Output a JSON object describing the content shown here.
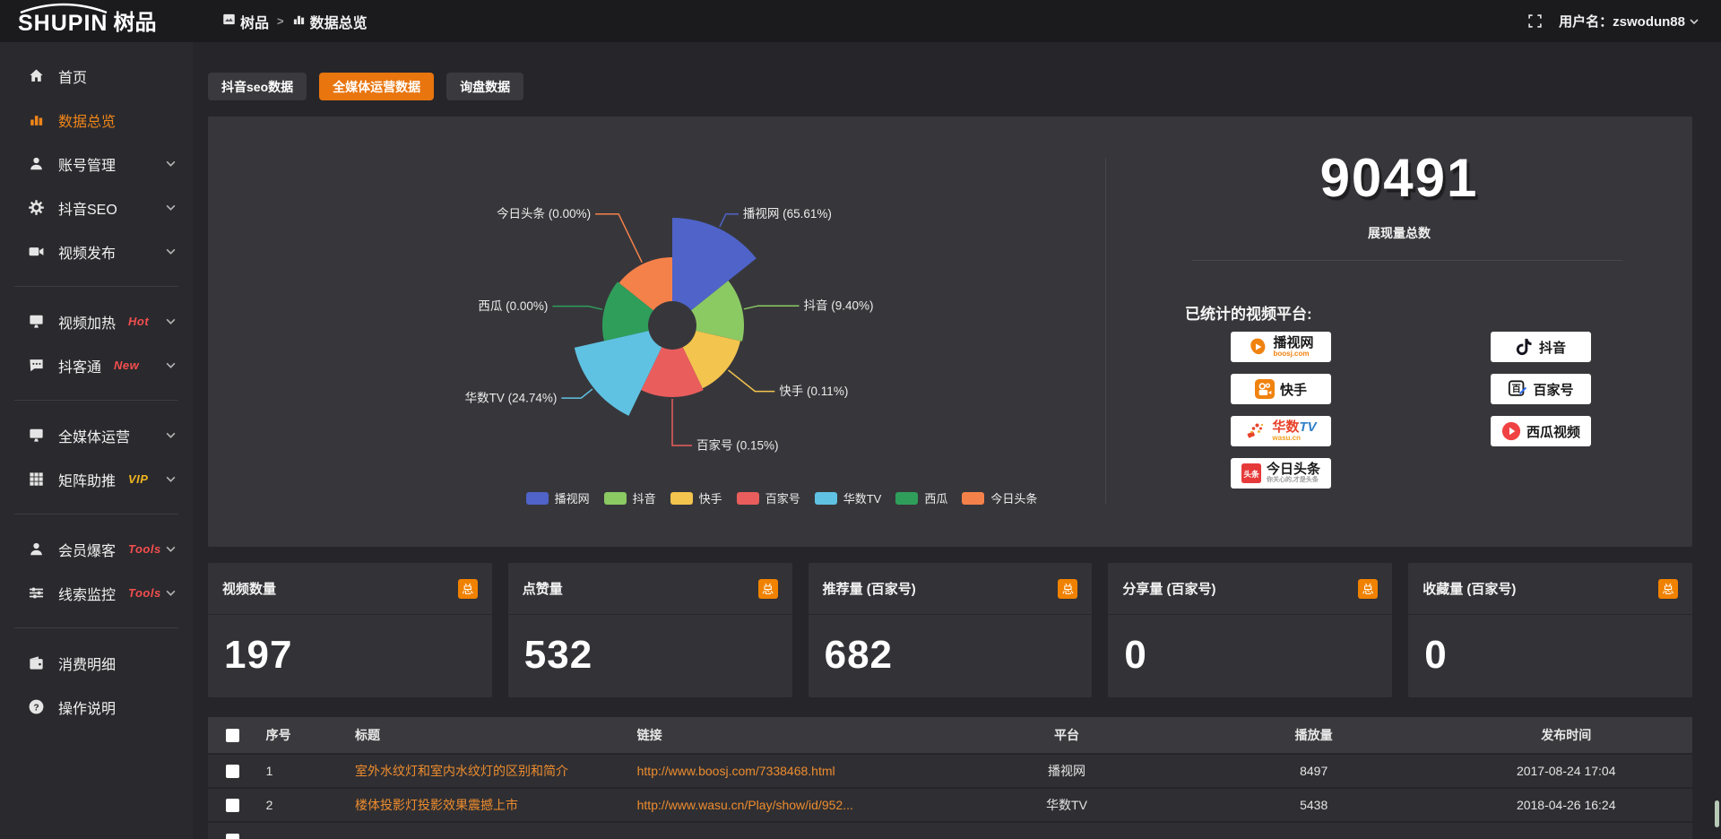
{
  "colors": {
    "accent": "#f08519",
    "tab_active": "#e8750e",
    "total_badge": "#f08200",
    "link": "#ee8c2e",
    "hot_badge": "#f34e4e",
    "vip_badge": "#f0b41f",
    "panel": "#37373b",
    "topbar": "#1b1b1e"
  },
  "topbar": {
    "logo_en": "SHUPIN",
    "logo_cn": "树品",
    "breadcrumb": [
      {
        "label": "树品",
        "icon": "picture-icon"
      },
      {
        "label": "数据总览",
        "icon": "bar-chart-icon"
      }
    ],
    "breadcrumb_separator": ">",
    "username_label": "用户名：zswodun88"
  },
  "sidebar": {
    "items": [
      {
        "label": "首页",
        "icon": "home"
      },
      {
        "label": "数据总览",
        "icon": "bar-chart",
        "active": true
      },
      {
        "label": "账号管理",
        "icon": "user",
        "chevron": true
      },
      {
        "label": "抖音SEO",
        "icon": "gear",
        "chevron": true
      },
      {
        "label": "视频发布",
        "icon": "camera",
        "chevron": true
      },
      {
        "divider": true
      },
      {
        "label": "视频加热",
        "icon": "monitor",
        "badge": "Hot",
        "badge_color": "#f34e4e",
        "chevron": true
      },
      {
        "label": "抖客通",
        "icon": "chat",
        "badge": "New",
        "badge_color": "#f34e4e",
        "chevron": true
      },
      {
        "divider": true
      },
      {
        "label": "全媒体运营",
        "icon": "monitor",
        "chevron": true
      },
      {
        "label": "矩阵助推",
        "icon": "grid",
        "badge": "VIP",
        "badge_color": "#f0b41f",
        "chevron": true
      },
      {
        "divider": true
      },
      {
        "label": "会员爆客",
        "icon": "user",
        "badge": "Tools",
        "badge_color": "#f34e4e",
        "chevron": true
      },
      {
        "label": "线索监控",
        "icon": "sliders",
        "badge": "Tools",
        "badge_color": "#f34e4e",
        "chevron": true
      },
      {
        "divider": true
      },
      {
        "label": "消费明细",
        "icon": "wallet"
      },
      {
        "label": "操作说明",
        "icon": "question"
      }
    ]
  },
  "tabs": [
    {
      "label": "抖音seo数据",
      "active": false
    },
    {
      "label": "全媒体运营数据",
      "active": true
    },
    {
      "label": "询盘数据",
      "active": false
    }
  ],
  "chart_data": {
    "type": "pie",
    "variant": "nightingale-rose",
    "legend_position": "bottom",
    "donut": true,
    "items": [
      {
        "name": "播视网",
        "value": 65.61,
        "pct": "65.61%",
        "color": "#4f63c9"
      },
      {
        "name": "抖音",
        "value": 9.4,
        "pct": "9.40%",
        "color": "#8bc963"
      },
      {
        "name": "快手",
        "value": 0.11,
        "pct": "0.11%",
        "color": "#f3c44e"
      },
      {
        "name": "百家号",
        "value": 0.15,
        "pct": "0.15%",
        "color": "#ea5d5d"
      },
      {
        "name": "华数TV",
        "value": 24.74,
        "pct": "24.74%",
        "color": "#5fc2e2"
      },
      {
        "name": "西瓜",
        "value": 0.0,
        "pct": "0.00%",
        "color": "#2f9e5b"
      },
      {
        "name": "今日头条",
        "value": 0.0,
        "pct": "0.00%",
        "color": "#f5814a"
      }
    ],
    "legend": [
      "播视网",
      "抖音",
      "快手",
      "百家号",
      "华数TV",
      "西瓜",
      "今日头条"
    ]
  },
  "summary": {
    "total_value": "90491",
    "total_label": "展现量总数",
    "platforms_title": "已统计的视频平台:",
    "platforms": [
      {
        "name": "播视网",
        "sub": "boosj.com",
        "logo": "boosj"
      },
      {
        "name": "抖音",
        "logo": "douyin"
      },
      {
        "name": "快手",
        "logo": "kuaishou"
      },
      {
        "name": "百家号",
        "logo": "baijia"
      },
      {
        "name": "华数TV",
        "sub": "wasu.cn",
        "logo": "wasu"
      },
      {
        "name": "西瓜视频",
        "logo": "xigua"
      },
      {
        "name": "今日头条",
        "sub": "你关心的,才是头条",
        "logo": "toutiao"
      }
    ]
  },
  "stat_cards": [
    {
      "label": "视频数量",
      "badge": "总",
      "value": "197"
    },
    {
      "label": "点赞量",
      "badge": "总",
      "value": "532"
    },
    {
      "label": "推荐量 (百家号)",
      "badge": "总",
      "value": "682"
    },
    {
      "label": "分享量 (百家号)",
      "badge": "总",
      "value": "0"
    },
    {
      "label": "收藏量 (百家号)",
      "badge": "总",
      "value": "0"
    }
  ],
  "table": {
    "columns": [
      "序号",
      "标题",
      "链接",
      "平台",
      "播放量",
      "发布时间"
    ],
    "rows": [
      {
        "index": "1",
        "title": "室外水纹灯和室内水纹灯的区别和简介",
        "link": "http://www.boosj.com/7338468.html",
        "platform": "播视网",
        "plays": "8497",
        "time": "2017-08-24 17:04"
      },
      {
        "index": "2",
        "title": "楼体投影灯投影效果震撼上市",
        "link": "http://www.wasu.cn/Play/show/id/952...",
        "platform": "华数TV",
        "plays": "5438",
        "time": "2018-04-26 16:24"
      }
    ]
  }
}
